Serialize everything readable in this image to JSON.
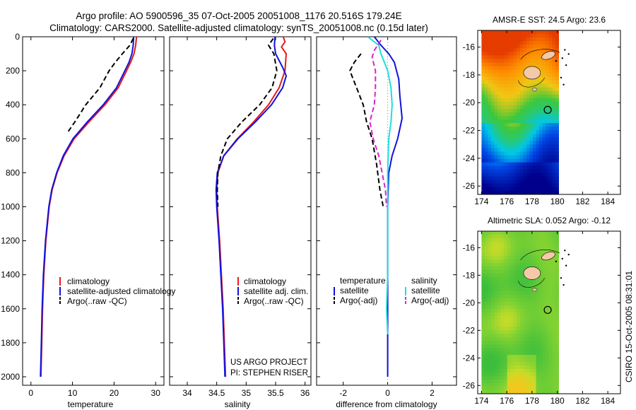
{
  "title_line1": "Argo profile: AO 5900596_35 07-Oct-2005 20051008_1176 20.516S 179.24E",
  "title_line2": "Climatology: CARS2000. Satellite-adjusted climatology: synTS_20051008.nc (0.15d later)",
  "side_caption": "CSIRO 15-Oct-2005 08:31:01",
  "colors": {
    "climatology": "#e41a1c",
    "satellite": "#1111dd",
    "argo": "#000000",
    "sat_diff": "#22dddd",
    "argo_sal_diff": "#dd22cc",
    "land": "#f4c9a8"
  },
  "chart_data": [
    {
      "type": "line",
      "xlabel": "temperature",
      "ylabel": "",
      "xlim": [
        -2,
        32
      ],
      "ylim": [
        2050,
        0
      ],
      "xticks": [
        "0",
        "10",
        "20",
        "30"
      ],
      "yticks": [
        "0",
        "200",
        "400",
        "600",
        "800",
        "1000",
        "1200",
        "1400",
        "1600",
        "1800",
        "2000"
      ],
      "legend": [
        "climatology",
        "satellite-adjusted climatology",
        "Argo(..raw -QC)"
      ],
      "series": [
        {
          "name": "climatology",
          "points": [
            [
              25.4,
              0
            ],
            [
              25.2,
              50
            ],
            [
              24.8,
              100
            ],
            [
              24.0,
              150
            ],
            [
              23.0,
              200
            ],
            [
              21.0,
              300
            ],
            [
              17.8,
              400
            ],
            [
              14.0,
              500
            ],
            [
              10.4,
              600
            ],
            [
              8.0,
              700
            ],
            [
              6.3,
              800
            ],
            [
              5.1,
              900
            ],
            [
              4.4,
              1000
            ],
            [
              3.6,
              1200
            ],
            [
              3.1,
              1400
            ],
            [
              2.8,
              1600
            ],
            [
              2.6,
              1800
            ],
            [
              2.4,
              2000
            ]
          ]
        },
        {
          "name": "satellite-adjusted climatology",
          "points": [
            [
              24.7,
              0
            ],
            [
              24.6,
              50
            ],
            [
              24.3,
              100
            ],
            [
              23.6,
              150
            ],
            [
              22.6,
              200
            ],
            [
              20.6,
              300
            ],
            [
              17.4,
              400
            ],
            [
              13.6,
              500
            ],
            [
              10.1,
              600
            ],
            [
              7.8,
              700
            ],
            [
              6.2,
              800
            ],
            [
              5.0,
              900
            ],
            [
              4.3,
              1000
            ],
            [
              3.5,
              1200
            ],
            [
              3.0,
              1400
            ],
            [
              2.7,
              1600
            ],
            [
              2.5,
              1800
            ],
            [
              2.3,
              2000
            ]
          ]
        },
        {
          "name": "Argo(..raw -QC)",
          "points": [
            [
              24.6,
              10
            ],
            [
              23.8,
              50
            ],
            [
              22.0,
              100
            ],
            [
              20.3,
              150
            ],
            [
              18.8,
              200
            ],
            [
              16.6,
              300
            ],
            [
              13.2,
              400
            ],
            [
              10.6,
              500
            ],
            [
              8.9,
              560
            ]
          ]
        }
      ]
    },
    {
      "type": "line",
      "xlabel": "salinity",
      "ylabel": "",
      "xlim": [
        33.7,
        36.1
      ],
      "ylim": [
        2050,
        0
      ],
      "xticks": [
        "34",
        "34.5",
        "35",
        "35.5",
        "36"
      ],
      "legend": [
        "climatology",
        "satellite adj. clim.",
        "Argo(..raw -QC)"
      ],
      "annotation_line1": "US ARGO PROJECT",
      "annotation_line2": "PI: STEPHEN RISER",
      "series": [
        {
          "name": "climatology",
          "points": [
            [
              35.63,
              0
            ],
            [
              35.66,
              30
            ],
            [
              35.6,
              60
            ],
            [
              35.68,
              100
            ],
            [
              35.66,
              200
            ],
            [
              35.56,
              300
            ],
            [
              35.38,
              400
            ],
            [
              35.13,
              500
            ],
            [
              34.85,
              600
            ],
            [
              34.62,
              700
            ],
            [
              34.52,
              800
            ],
            [
              34.5,
              900
            ],
            [
              34.51,
              1000
            ],
            [
              34.55,
              1200
            ],
            [
              34.58,
              1400
            ],
            [
              34.61,
              1600
            ],
            [
              34.63,
              1800
            ],
            [
              34.65,
              2000
            ]
          ]
        },
        {
          "name": "satellite adj. clim.",
          "points": [
            [
              35.49,
              0
            ],
            [
              35.48,
              50
            ],
            [
              35.5,
              100
            ],
            [
              35.62,
              180
            ],
            [
              35.68,
              230
            ],
            [
              35.62,
              300
            ],
            [
              35.43,
              400
            ],
            [
              35.16,
              500
            ],
            [
              34.86,
              600
            ],
            [
              34.62,
              700
            ],
            [
              34.51,
              800
            ],
            [
              34.49,
              900
            ],
            [
              34.5,
              1000
            ],
            [
              34.54,
              1200
            ],
            [
              34.57,
              1400
            ],
            [
              34.6,
              1600
            ],
            [
              34.62,
              1800
            ],
            [
              34.64,
              2000
            ]
          ]
        },
        {
          "name": "Argo(..raw -QC)",
          "points": [
            [
              35.46,
              10
            ],
            [
              35.38,
              50
            ],
            [
              35.47,
              100
            ],
            [
              35.52,
              200
            ],
            [
              35.44,
              300
            ],
            [
              35.23,
              400
            ],
            [
              34.93,
              500
            ],
            [
              34.68,
              600
            ],
            [
              34.57,
              700
            ],
            [
              34.52,
              800
            ],
            [
              34.51,
              900
            ],
            [
              34.52,
              1000
            ]
          ]
        }
      ]
    },
    {
      "type": "line",
      "xlabel": "difference from climatology",
      "ylabel": "",
      "xlim": [
        -3.2,
        3.1
      ],
      "ylim": [
        2050,
        0
      ],
      "xticks": [
        "-2",
        "0",
        "2"
      ],
      "legend_title_temperature": "temperature",
      "legend_title_salinity": "salinity",
      "legend": [
        "satellite",
        "Argo(-adj)",
        "satellite",
        "Argo(-adj)"
      ],
      "series": [
        {
          "name": "satellite",
          "points": [
            [
              -0.6,
              0
            ],
            [
              -0.3,
              50
            ],
            [
              0.05,
              100
            ],
            [
              0.3,
              150
            ],
            [
              0.5,
              250
            ],
            [
              0.55,
              350
            ],
            [
              0.65,
              480
            ],
            [
              0.45,
              600
            ],
            [
              0.2,
              700
            ],
            [
              0.05,
              800
            ],
            [
              0.0,
              1000
            ],
            [
              0.0,
              2000
            ]
          ]
        },
        {
          "name": "Argo(-adj)",
          "points": [
            [
              -1.2,
              100
            ],
            [
              -1.5,
              150
            ],
            [
              -1.7,
              200
            ],
            [
              -1.4,
              300
            ],
            [
              -1.1,
              400
            ],
            [
              -0.95,
              500
            ],
            [
              -0.7,
              600
            ],
            [
              -0.5,
              750
            ],
            [
              -0.35,
              900
            ],
            [
              -0.2,
              1000
            ]
          ]
        },
        {
          "name": "satellite",
          "points": [
            [
              -0.9,
              0
            ],
            [
              -0.4,
              50
            ],
            [
              -0.3,
              100
            ],
            [
              0.0,
              200
            ],
            [
              0.15,
              300
            ],
            [
              0.2,
              400
            ],
            [
              0.15,
              500
            ],
            [
              0.05,
              600
            ],
            [
              0.0,
              800
            ],
            [
              0.0,
              1000
            ],
            [
              0.0,
              1400
            ],
            [
              -0.05,
              1600
            ],
            [
              0.0,
              1750
            ]
          ]
        },
        {
          "name": "Argo(-adj)",
          "points": [
            [
              -0.3,
              20
            ],
            [
              -0.6,
              80
            ],
            [
              -0.7,
              120
            ],
            [
              -0.55,
              200
            ],
            [
              -0.55,
              300
            ],
            [
              -0.6,
              400
            ],
            [
              -0.8,
              500
            ],
            [
              -0.65,
              600
            ],
            [
              -0.4,
              700
            ],
            [
              -0.25,
              800
            ],
            [
              -0.1,
              900
            ],
            [
              -0.05,
              1000
            ]
          ]
        }
      ]
    },
    {
      "type": "heatmap",
      "title": "AMSR-E SST: 24.5 Argo: 23.6",
      "xlim": [
        173.7,
        185
      ],
      "ylim": [
        -26.6,
        -14.8
      ],
      "xticks": [
        "174",
        "176",
        "178",
        "180",
        "182",
        "184"
      ],
      "yticks": [
        "-16",
        "-18",
        "-20",
        "-22",
        "-24",
        "-26"
      ],
      "marker": {
        "lon": 179.24,
        "lat": -20.516
      }
    },
    {
      "type": "heatmap",
      "title": "Altimetric SLA: 0.052 Argo: -0.12",
      "xlim": [
        173.7,
        185
      ],
      "ylim": [
        -26.6,
        -14.8
      ],
      "xticks": [
        "174",
        "176",
        "178",
        "180",
        "182",
        "184"
      ],
      "yticks": [
        "-16",
        "-18",
        "-20",
        "-22",
        "-24",
        "-26"
      ],
      "marker": {
        "lon": 179.24,
        "lat": -20.516
      }
    }
  ]
}
